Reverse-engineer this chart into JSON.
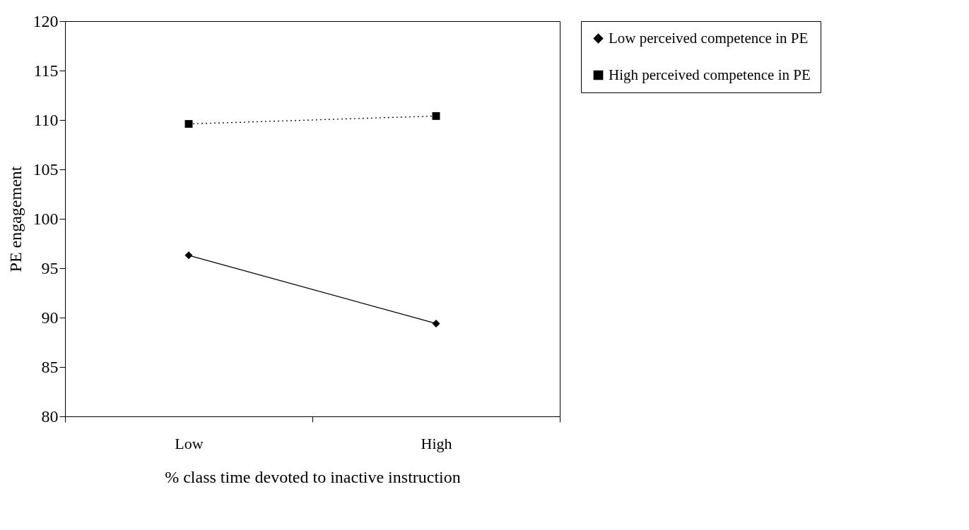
{
  "chart_data": {
    "type": "line",
    "xlabel": "% class time devoted to inactive instruction",
    "ylabel": "PE engagement",
    "categories": [
      "Low",
      "High"
    ],
    "series": [
      {
        "name": "Low perceived competence in PE",
        "color": "#000000",
        "marker": "diamond",
        "line_style": "solid",
        "values": [
          96.3,
          89.4
        ]
      },
      {
        "name": "High perceived competence in PE",
        "color": "#000000",
        "marker": "square",
        "line_style": "dotted",
        "values": [
          109.6,
          110.4
        ]
      }
    ],
    "ylim": [
      80,
      120
    ],
    "yticks": [
      80,
      85,
      90,
      95,
      100,
      105,
      110,
      115,
      120
    ],
    "grid": false,
    "legend": "right"
  }
}
